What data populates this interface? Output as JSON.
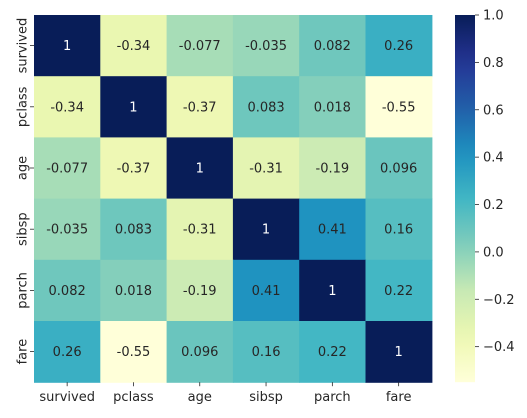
{
  "chart_data": {
    "type": "heatmap",
    "title": "",
    "xlabel": "",
    "ylabel": "",
    "x_categories": [
      "survived",
      "pclass",
      "age",
      "sibsp",
      "parch",
      "fare"
    ],
    "y_categories": [
      "survived",
      "pclass",
      "age",
      "sibsp",
      "parch",
      "fare"
    ],
    "values": [
      [
        1,
        -0.34,
        -0.077,
        -0.035,
        0.082,
        0.26
      ],
      [
        -0.34,
        1,
        -0.37,
        0.083,
        0.018,
        -0.55
      ],
      [
        -0.077,
        -0.37,
        1,
        -0.31,
        -0.19,
        0.096
      ],
      [
        -0.035,
        0.083,
        -0.31,
        1,
        0.41,
        0.16
      ],
      [
        0.082,
        0.018,
        -0.19,
        0.41,
        1,
        0.22
      ],
      [
        0.26,
        -0.55,
        0.096,
        0.16,
        0.22,
        1
      ]
    ],
    "value_labels": [
      [
        "1",
        "-0.34",
        "-0.077",
        "-0.035",
        "0.082",
        "0.26"
      ],
      [
        "-0.34",
        "1",
        "-0.37",
        "0.083",
        "0.018",
        "-0.55"
      ],
      [
        "-0.077",
        "-0.37",
        "1",
        "-0.31",
        "-0.19",
        "0.096"
      ],
      [
        "-0.035",
        "0.083",
        "-0.31",
        "1",
        "0.41",
        "0.16"
      ],
      [
        "0.082",
        "0.018",
        "-0.19",
        "0.41",
        "1",
        "0.22"
      ],
      [
        "0.26",
        "-0.55",
        "0.096",
        "0.16",
        "0.22",
        "1"
      ]
    ],
    "colormap": "YlGnBu",
    "color_range": [
      -0.55,
      1
    ],
    "colorbar_ticks": [
      1.0,
      0.8,
      0.6,
      0.4,
      0.2,
      0.0,
      -0.2,
      -0.4
    ],
    "colorbar_tick_labels": [
      "1.0",
      "0.8",
      "0.6",
      "0.4",
      "0.2",
      "0.0",
      "−0.2",
      "−0.4"
    ],
    "grid": false
  }
}
